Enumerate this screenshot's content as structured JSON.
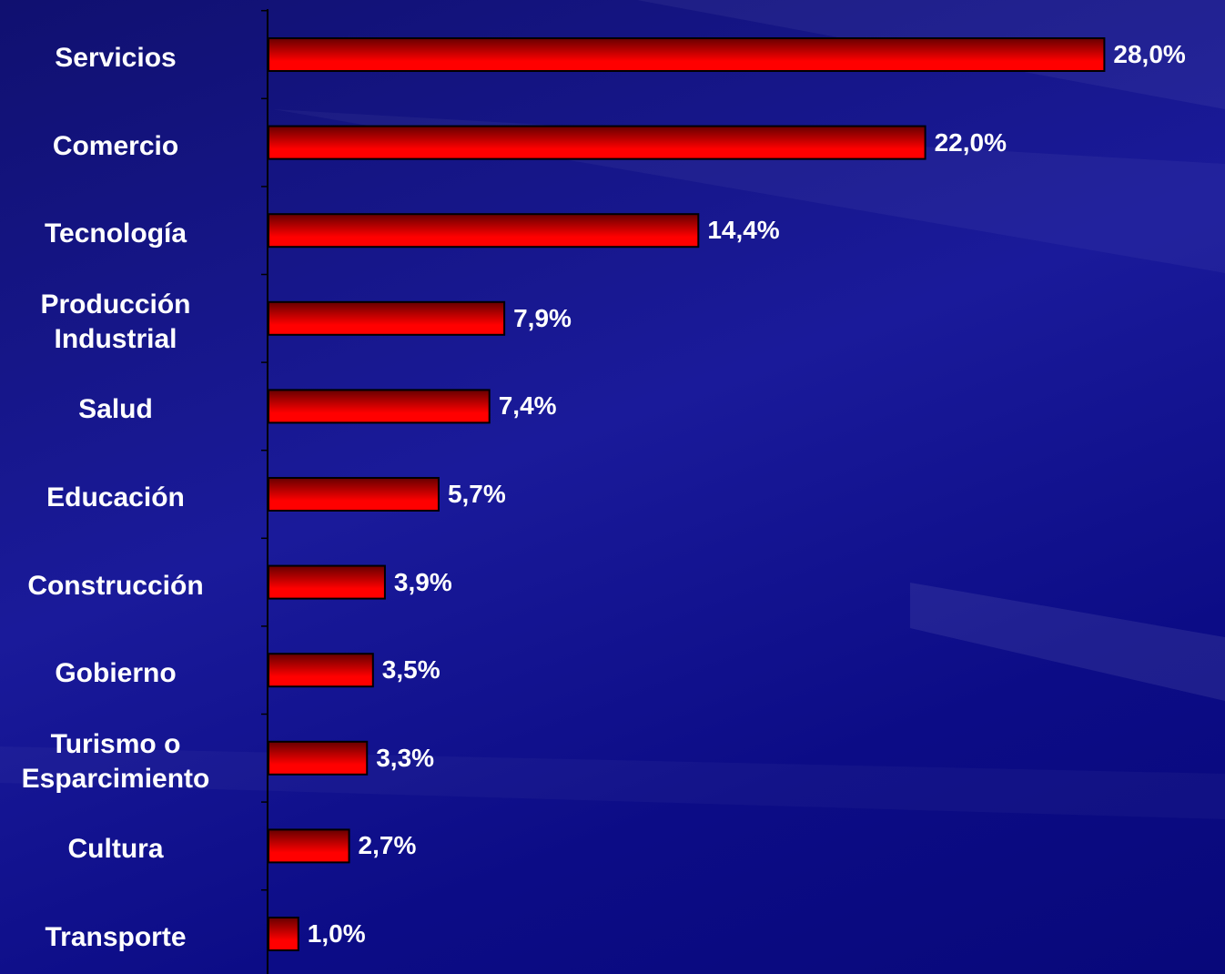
{
  "chart_data": {
    "type": "bar",
    "orientation": "horizontal",
    "categories": [
      "Servicios",
      "Comercio",
      "Tecnología",
      "Producción Industrial",
      "Salud",
      "Educación",
      "Construcción",
      "Gobierno",
      "Turismo o Esparcimiento",
      "Cultura",
      "Transporte"
    ],
    "values": [
      28.0,
      22.0,
      14.4,
      7.9,
      7.4,
      5.7,
      3.9,
      3.5,
      3.3,
      2.7,
      1.0
    ],
    "value_labels": [
      "28,0%",
      "22,0%",
      "14,4%",
      "7,9%",
      "7,4%",
      "5,7%",
      "3,9%",
      "3,5%",
      "3,3%",
      "2,7%",
      "1,0%"
    ],
    "color": "#ff0000"
  }
}
